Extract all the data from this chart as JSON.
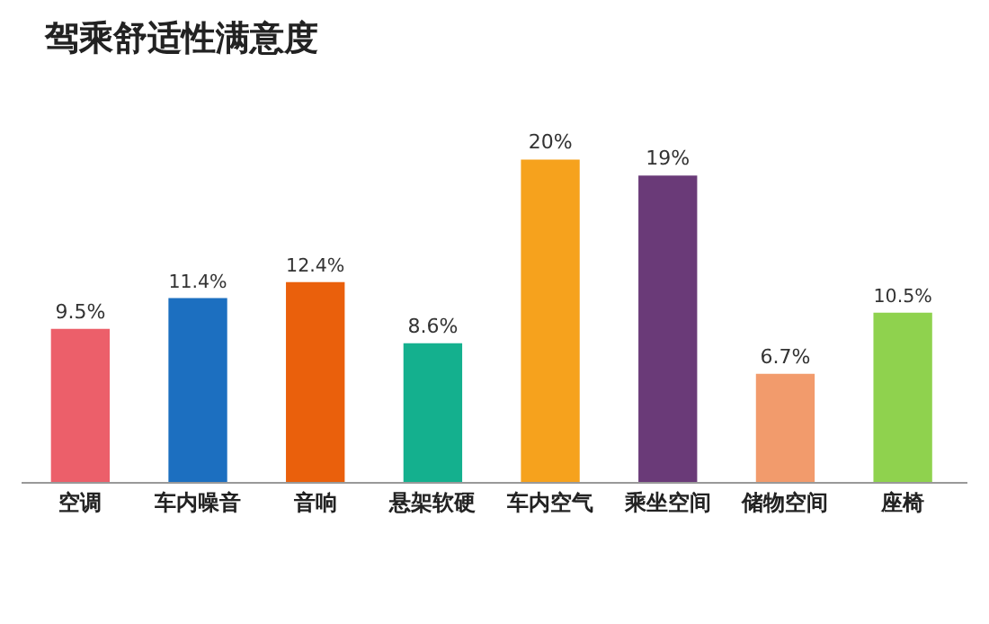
{
  "chart_data": {
    "type": "bar",
    "title": "驾乘舒适性满意度",
    "categories": [
      "空调",
      "车内噪音",
      "音响",
      "悬架软硬",
      "车内空气",
      "乘坐空间",
      "储物空间",
      "座椅"
    ],
    "values": [
      9.5,
      11.4,
      12.4,
      8.6,
      20,
      19,
      6.7,
      10.5
    ],
    "value_labels": [
      "9.5%",
      "11.4%",
      "12.4%",
      "8.6%",
      "20%",
      "19%",
      "6.7%",
      "10.5%"
    ],
    "colors": [
      "#ec5f6a",
      "#1c6fc0",
      "#ea600c",
      "#14b08e",
      "#f6a21d",
      "#6a3a78",
      "#f29b6c",
      "#8fd24e"
    ],
    "legend": false
  }
}
